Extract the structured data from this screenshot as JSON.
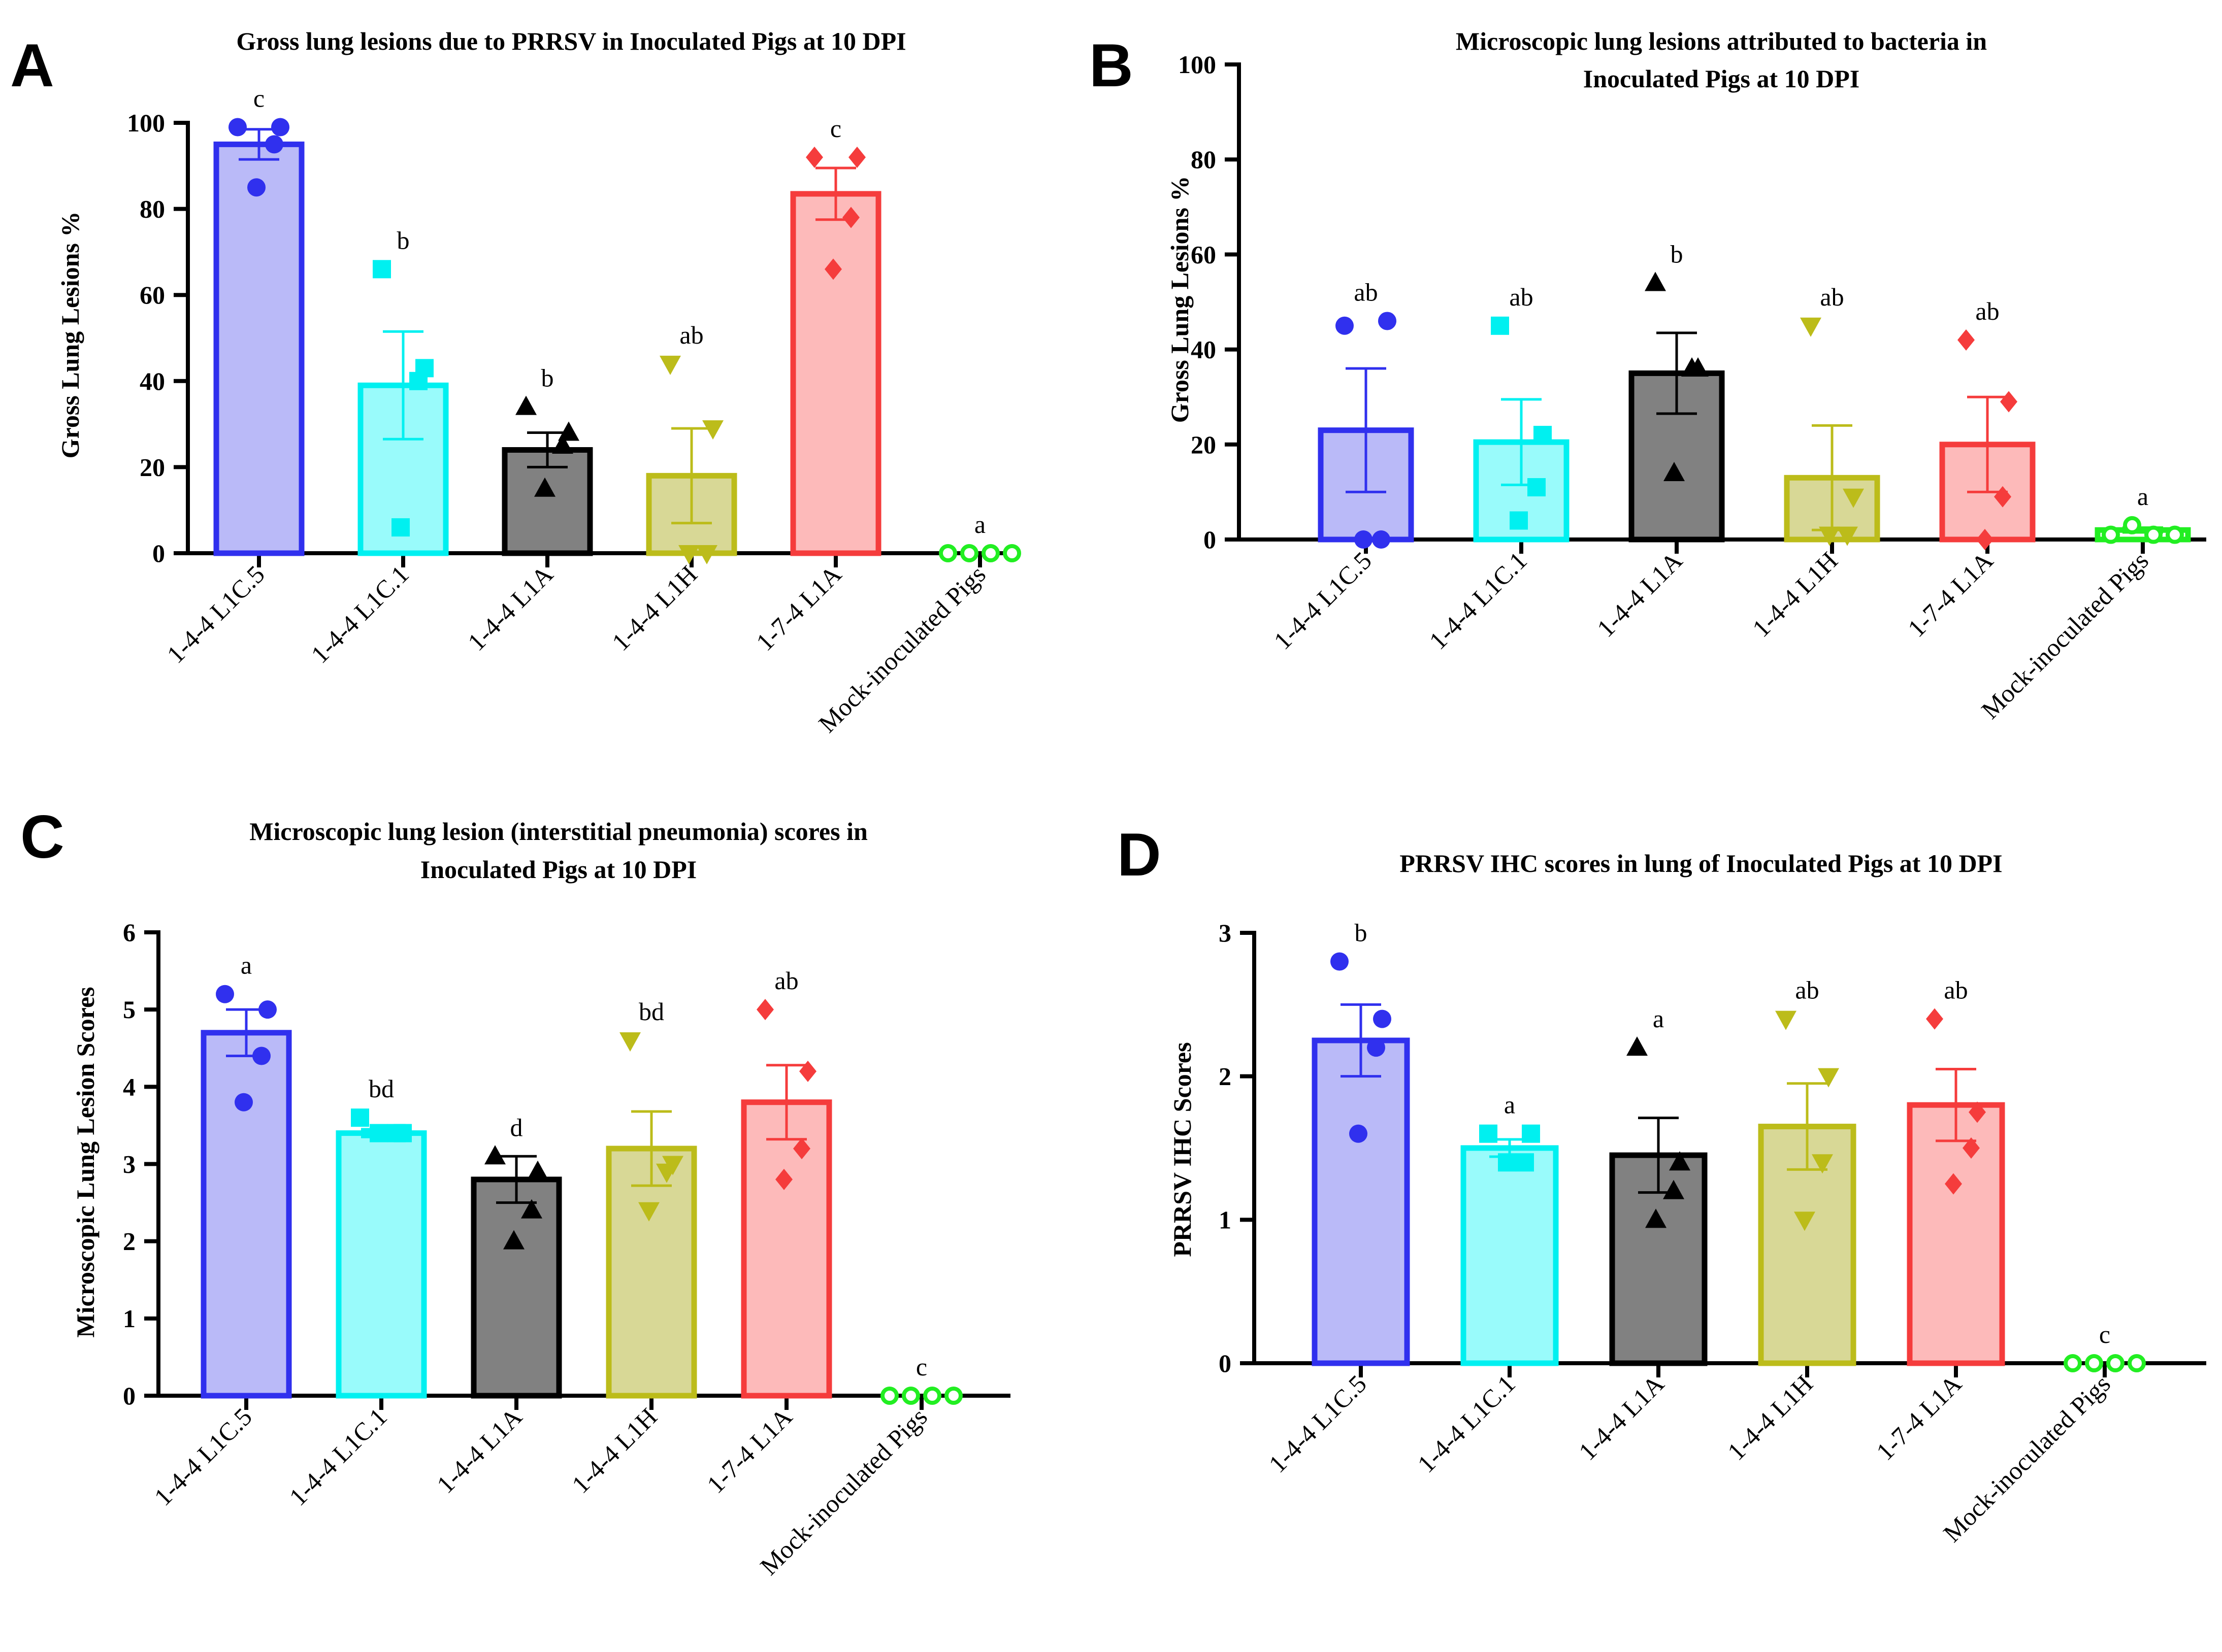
{
  "chart_data": [
    {
      "panel": "A",
      "type": "bar",
      "title": [
        "Gross lung lesions due to PRRSV in Inoculated Pigs at 10 DPI"
      ],
      "ylabel": "Gross Lung Lesions %",
      "xlabel": "",
      "ylim": [
        0,
        100
      ],
      "yticks": [
        0,
        20,
        40,
        60,
        80,
        100
      ],
      "categories": [
        "1-4-4 L1C.5",
        "1-4-4 L1C.1",
        "1-4-4 L1A",
        "1-4-4 L1H",
        "1-7-4 L1A",
        "Mock-inoculated Pigs"
      ],
      "values": [
        95,
        39,
        24,
        18,
        83.5,
        0
      ],
      "sem": [
        3.5,
        12.5,
        4,
        11,
        6,
        0
      ],
      "letters": [
        "c",
        "b",
        "b",
        "ab",
        "c",
        "a"
      ],
      "points": [
        [
          99,
          99,
          95,
          85
        ],
        [
          66,
          43,
          40,
          6
        ],
        [
          34,
          28,
          25,
          15
        ],
        [
          44,
          29,
          0,
          0
        ],
        [
          92,
          92,
          78,
          66
        ],
        [
          0,
          0,
          0,
          0
        ]
      ]
    },
    {
      "panel": "B",
      "type": "bar",
      "title": [
        "Microscopic lung lesions attributed to bacteria in",
        "Inoculated Pigs at 10 DPI"
      ],
      "ylabel": "Gross Lung Lesions %",
      "xlabel": "",
      "ylim": [
        0,
        100
      ],
      "yticks": [
        0,
        20,
        40,
        60,
        80,
        100
      ],
      "categories": [
        "1-4-4 L1C.5",
        "1-4-4 L1C.1",
        "1-4-4 L1A",
        "1-4-4 L1H",
        "1-7-4 L1A",
        "Mock-inoculated Pigs"
      ],
      "values": [
        23,
        20.5,
        35,
        13,
        20,
        2
      ],
      "sem": [
        13,
        9,
        8.5,
        11,
        10,
        0.5
      ],
      "letters": [
        "ab",
        "ab",
        "b",
        "ab",
        "ab",
        "a"
      ],
      "points": [
        [
          45,
          46,
          0,
          0
        ],
        [
          45,
          22,
          11,
          4
        ],
        [
          54,
          36,
          36,
          14
        ],
        [
          45,
          9,
          1,
          1
        ],
        [
          42,
          29,
          9,
          0
        ],
        [
          1,
          3,
          1,
          1
        ]
      ]
    },
    {
      "panel": "C",
      "type": "bar",
      "title": [
        "Microscopic lung lesion (interstitial pneumonia) scores in",
        "Inoculated Pigs at 10 DPI"
      ],
      "ylabel": "Microscopic Lung Lesion Scores",
      "xlabel": "",
      "ylim": [
        0,
        6
      ],
      "yticks": [
        0,
        1,
        2,
        3,
        4,
        5,
        6
      ],
      "categories": [
        "1-4-4 L1C.5",
        "1-4-4 L1C.1",
        "1-4-4 L1A",
        "1-4-4 L1H",
        "1-7-4 L1A",
        "Mock-inoculated Pigs"
      ],
      "values": [
        4.7,
        3.4,
        2.8,
        3.2,
        3.8,
        0
      ],
      "sem": [
        0.3,
        0.05,
        0.3,
        0.48,
        0.48,
        0
      ],
      "letters": [
        "a",
        "bd",
        "d",
        "bd",
        "ab",
        "c"
      ],
      "points": [
        [
          5.2,
          5.0,
          4.4,
          3.8
        ],
        [
          3.6,
          3.4,
          3.4,
          3.4
        ],
        [
          3.1,
          2.9,
          2.4,
          2.0
        ],
        [
          4.6,
          3.0,
          2.9,
          2.4
        ],
        [
          5.0,
          4.2,
          3.2,
          2.8
        ],
        [
          0,
          0,
          0,
          0
        ]
      ]
    },
    {
      "panel": "D",
      "type": "bar",
      "title": [
        "PRRSV IHC scores in lung of Inoculated Pigs at 10 DPI"
      ],
      "ylabel": "PRRSV IHC Scores",
      "xlabel": "",
      "ylim": [
        0,
        3
      ],
      "yticks": [
        0,
        1,
        2,
        3
      ],
      "categories": [
        "1-4-4 L1C.5",
        "1-4-4 L1C.1",
        "1-4-4 L1A",
        "1-4-4 L1H",
        "1-7-4 L1A",
        "Mock-inoculated Pigs"
      ],
      "values": [
        2.25,
        1.5,
        1.45,
        1.65,
        1.8,
        0
      ],
      "sem": [
        0.25,
        0.06,
        0.26,
        0.3,
        0.25,
        0
      ],
      "letters": [
        "b",
        "a",
        "a",
        "ab",
        "ab",
        "c"
      ],
      "points": [
        [
          2.8,
          2.4,
          2.2,
          1.6
        ],
        [
          1.6,
          1.6,
          1.4,
          1.4
        ],
        [
          2.2,
          1.4,
          1.2,
          1.0
        ],
        [
          2.4,
          2.0,
          1.4,
          1.0
        ],
        [
          2.4,
          1.75,
          1.5,
          1.25
        ],
        [
          0,
          0,
          0,
          0
        ]
      ]
    }
  ],
  "groups": [
    {
      "name": "1-4-4 L1C.5",
      "fill": "#babaf8",
      "stroke": "#3030ee",
      "marker": "circle"
    },
    {
      "name": "1-4-4 L1C.1",
      "fill": "#99fbfb",
      "stroke": "#00f0f0",
      "marker": "square"
    },
    {
      "name": "1-4-4 L1A",
      "fill": "#818181",
      "stroke": "#000000",
      "marker": "triangle-up"
    },
    {
      "name": "1-4-4 L1H",
      "fill": "#d8d896",
      "stroke": "#bcbc1a",
      "marker": "triangle-down"
    },
    {
      "name": "1-7-4 L1A",
      "fill": "#fdbaba",
      "stroke": "#f53c3c",
      "marker": "diamond"
    },
    {
      "name": "Mock-inoculated Pigs",
      "fill": "#ffffff",
      "stroke": "#22ee22",
      "marker": "open-circle"
    }
  ]
}
